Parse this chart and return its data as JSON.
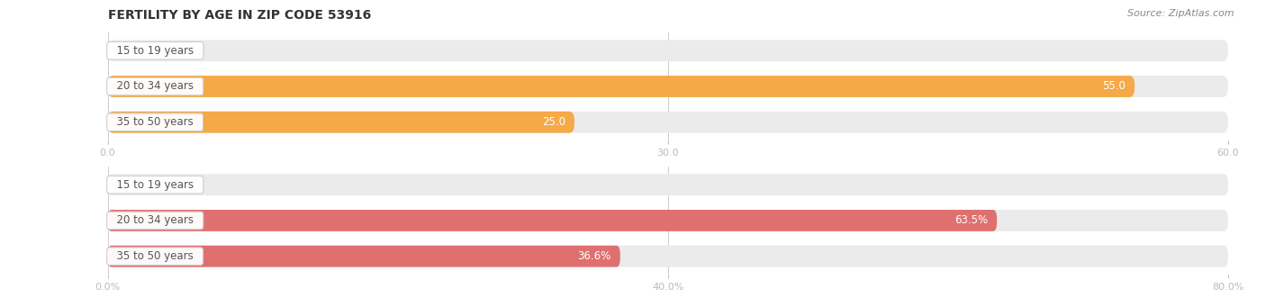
{
  "title": "FERTILITY BY AGE IN ZIP CODE 53916",
  "source": "Source: ZipAtlas.com",
  "top_chart": {
    "categories": [
      "15 to 19 years",
      "20 to 34 years",
      "35 to 50 years"
    ],
    "values": [
      0.0,
      55.0,
      25.0
    ],
    "xmax": 60,
    "xticks": [
      0.0,
      30.0,
      60.0
    ],
    "xtick_labels": [
      "0.0",
      "30.0",
      "60.0"
    ],
    "bar_color": "#F5A947",
    "bar_color_light": "#F9D09A",
    "bg_color": "#EBEBEB"
  },
  "bottom_chart": {
    "categories": [
      "15 to 19 years",
      "20 to 34 years",
      "35 to 50 years"
    ],
    "values": [
      0.0,
      63.5,
      36.6
    ],
    "xmax": 80,
    "xticks": [
      0.0,
      40.0,
      80.0
    ],
    "xtick_labels": [
      "0.0%",
      "40.0%",
      "80.0%"
    ],
    "bar_color": "#E07070",
    "bar_color_light": "#F0A8A8",
    "bg_color": "#EBEBEB"
  },
  "fig_bg_color": "#FFFFFF",
  "label_font_size": 8.5,
  "title_font_size": 10,
  "source_font_size": 8,
  "bar_height": 0.6,
  "row_label_color": "#555555",
  "label_inside_color": "#FFFFFF",
  "label_outside_color": "#888888"
}
